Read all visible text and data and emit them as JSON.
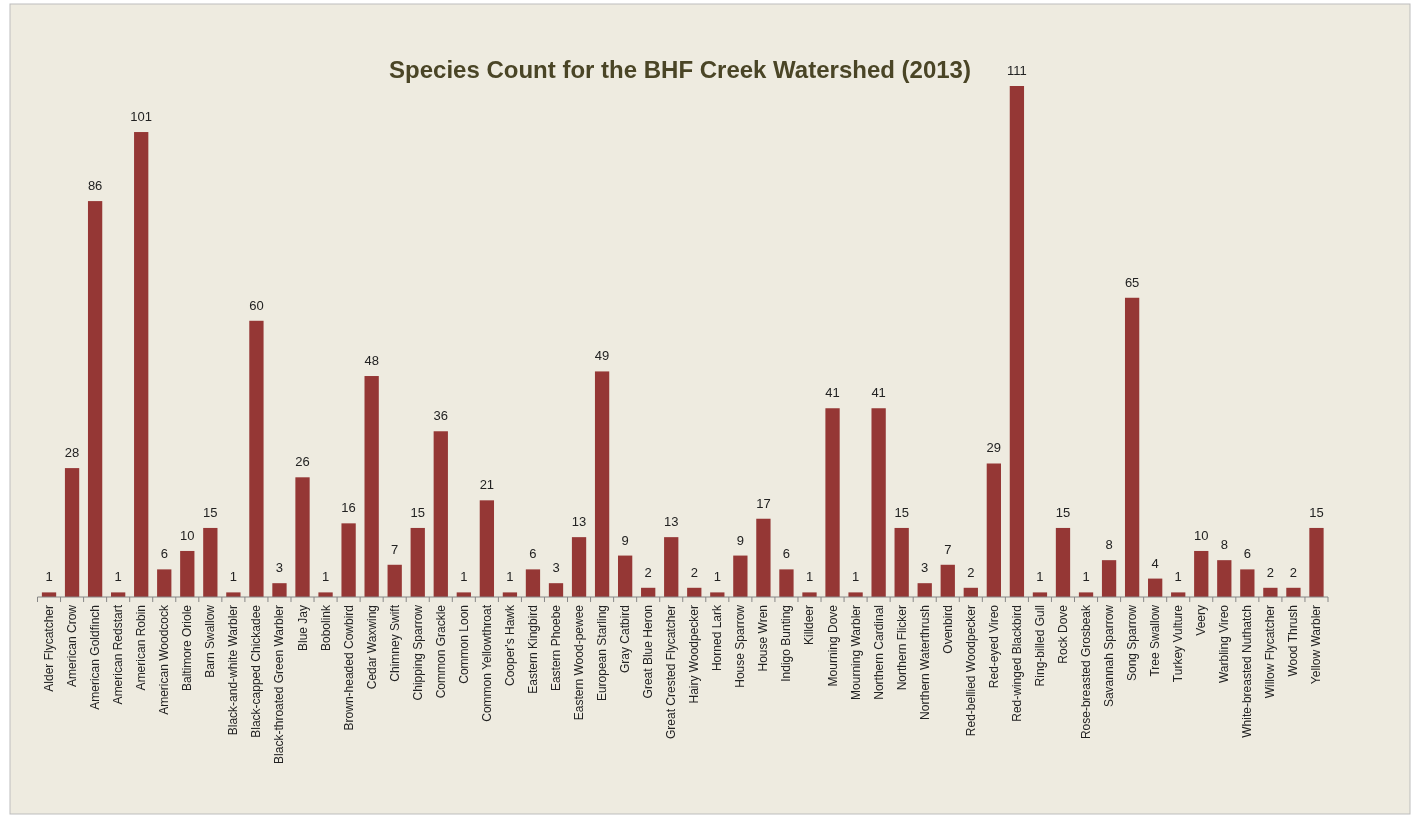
{
  "chart_data": {
    "type": "bar",
    "title": "Species Count for the BHF Creek Watershed (2013)",
    "categories": [
      "Alder Flycatcher",
      "American Crow",
      "American Goldfinch",
      "American Redstart",
      "American Robin",
      "American Woodcock",
      "Baltimore Oriole",
      "Barn Swallow",
      "Black-and-white Warbler",
      "Black-capped Chickadee",
      "Black-throated Green Warbler",
      "Blue Jay",
      "Bobolink",
      "Brown-headed Cowbird",
      "Cedar Waxwing",
      "Chimney Swift",
      "Chipping Sparrow",
      "Common Grackle",
      "Common Loon",
      "Common Yellowthroat",
      "Cooper's Hawk",
      "Eastern Kingbird",
      "Eastern Phoebe",
      "Eastern Wood-pewee",
      "European Starling",
      "Gray Catbird",
      "Great Blue Heron",
      "Great Crested Flycatcher",
      "Hairy Woodpecker",
      "Horned Lark",
      "House Sparrow",
      "House Wren",
      "Indigo Bunting",
      "Killdeer",
      "Mourning Dove",
      "Mourning Warbler",
      "Northern Cardinal",
      "Northern Flicker",
      "Northern Waterthrush",
      "Ovenbird",
      "Red-bellied Woodpecker",
      "Red-eyed Vireo",
      "Red-winged Blackbird",
      "Ring-billed Gull",
      "Rock Dove",
      "Rose-breasted Grosbeak",
      "Savannah Sparrow",
      "Song Sparrow",
      "Tree Swallow",
      "Turkey Vulture",
      "Veery",
      "Warbling Vireo",
      "White-breasted Nuthatch",
      "Willow Flycatcher",
      "Wood Thrush",
      "Yellow Warbler"
    ],
    "values": [
      1,
      28,
      86,
      1,
      101,
      6,
      10,
      15,
      1,
      60,
      3,
      26,
      1,
      16,
      48,
      7,
      15,
      36,
      1,
      21,
      1,
      6,
      3,
      13,
      49,
      9,
      2,
      13,
      2,
      1,
      9,
      17,
      6,
      1,
      41,
      1,
      41,
      15,
      3,
      7,
      2,
      29,
      111,
      1,
      15,
      1,
      8,
      65,
      4,
      1,
      10,
      8,
      6,
      2,
      2,
      15
    ],
    "color": "#953735",
    "data_labels": true,
    "tick_labels": "x"
  }
}
